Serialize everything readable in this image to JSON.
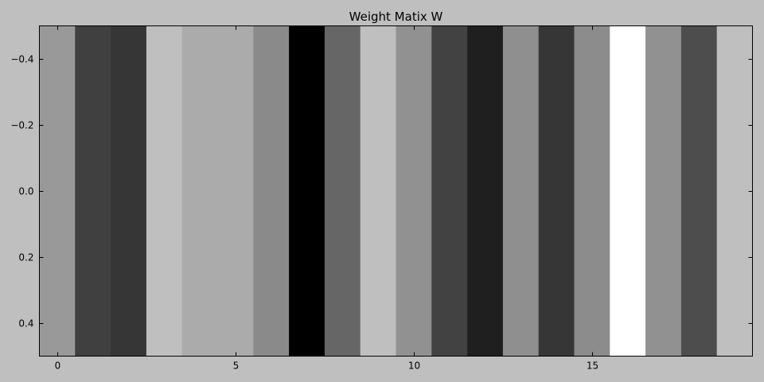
{
  "chart_data": {
    "type": "heatmap",
    "title": "Weight Matix W",
    "xlabel": "",
    "ylabel": "",
    "colormap": "gray",
    "columns": [
      0,
      1,
      2,
      3,
      4,
      5,
      6,
      7,
      8,
      9,
      10,
      11,
      12,
      13,
      14,
      15,
      16,
      17,
      18,
      19
    ],
    "intensities": [
      0.6,
      0.25,
      0.21,
      0.75,
      0.67,
      0.67,
      0.54,
      0.0,
      0.4,
      0.75,
      0.57,
      0.26,
      0.12,
      0.56,
      0.21,
      0.55,
      1.0,
      0.57,
      0.3,
      0.75
    ],
    "xlim": [
      -0.5,
      19.5
    ],
    "ylim": [
      0.5,
      -0.5
    ],
    "xticks": [
      0,
      5,
      10,
      15
    ],
    "xtick_labels": [
      "0",
      "5",
      "10",
      "15"
    ],
    "yticks": [
      -0.4,
      -0.2,
      0.0,
      0.2,
      0.4
    ],
    "ytick_labels": [
      "−0.4",
      "−0.2",
      "0.0",
      "0.2",
      "0.4"
    ],
    "grid": false,
    "legend": "none"
  }
}
